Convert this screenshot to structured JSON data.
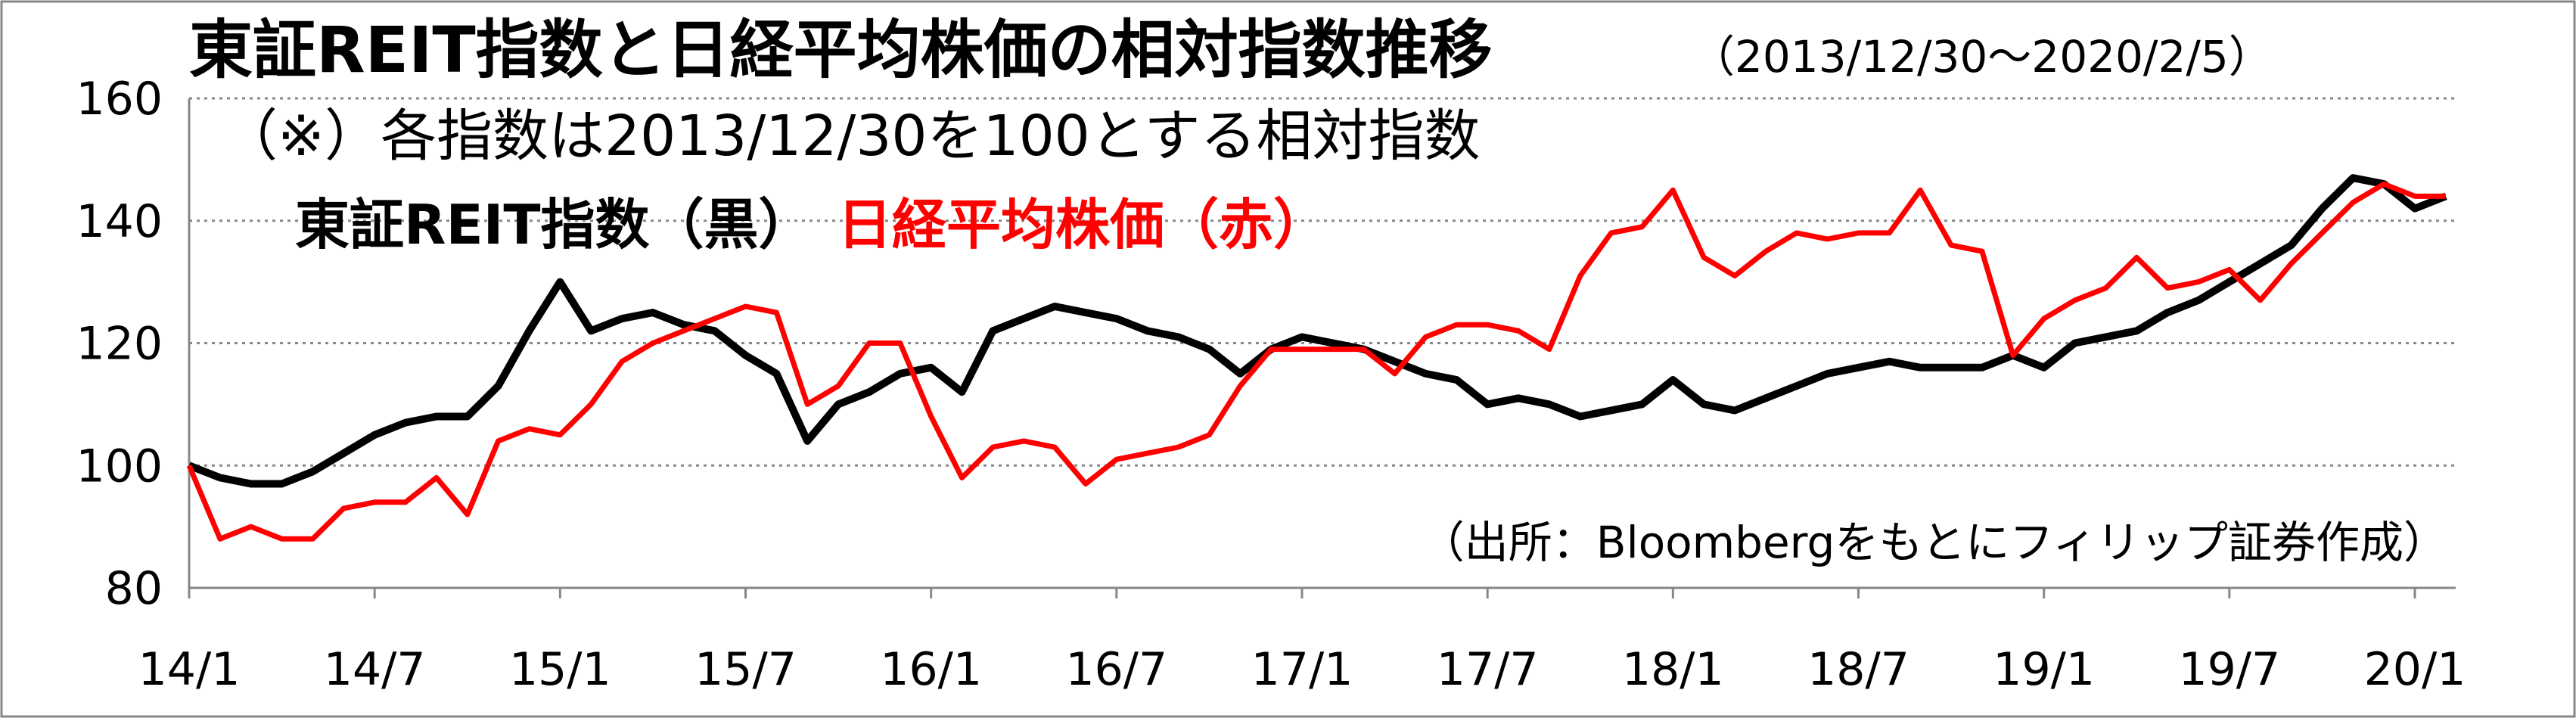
{
  "chart_data": {
    "type": "line",
    "title": "東証REIT指数と日経平均株価の相対指数推移",
    "subtitle": "（2013/12/30～2020/2/5）",
    "annotations": [
      "（※）各指数は2013/12/30を100とする相対指数",
      "（出所：Bloombergをもとにフィリップ証券作成）"
    ],
    "x": [
      "14/1",
      "14/2",
      "14/3",
      "14/4",
      "14/5",
      "14/6",
      "14/7",
      "14/8",
      "14/9",
      "14/10",
      "14/11",
      "14/12",
      "15/1",
      "15/2",
      "15/3",
      "15/4",
      "15/5",
      "15/6",
      "15/7",
      "15/8",
      "15/9",
      "15/10",
      "15/11",
      "15/12",
      "16/1",
      "16/2",
      "16/3",
      "16/4",
      "16/5",
      "16/6",
      "16/7",
      "16/8",
      "16/9",
      "16/10",
      "16/11",
      "16/12",
      "17/1",
      "17/2",
      "17/3",
      "17/4",
      "17/5",
      "17/6",
      "17/7",
      "17/8",
      "17/9",
      "17/10",
      "17/11",
      "17/12",
      "18/1",
      "18/2",
      "18/3",
      "18/4",
      "18/5",
      "18/6",
      "18/7",
      "18/8",
      "18/9",
      "18/10",
      "18/11",
      "18/12",
      "19/1",
      "19/2",
      "19/3",
      "19/4",
      "19/5",
      "19/6",
      "19/7",
      "19/8",
      "19/9",
      "19/10",
      "19/11",
      "19/12",
      "20/1",
      "20/2"
    ],
    "series": [
      {
        "name": "東証REIT指数（黒）",
        "color": "#000000",
        "values": [
          100,
          98,
          97,
          97,
          99,
          102,
          105,
          107,
          108,
          108,
          113,
          122,
          130,
          122,
          124,
          125,
          123,
          122,
          118,
          115,
          104,
          110,
          112,
          115,
          116,
          112,
          122,
          124,
          126,
          125,
          124,
          122,
          121,
          119,
          115,
          119,
          121,
          120,
          119,
          117,
          115,
          114,
          110,
          111,
          110,
          108,
          109,
          110,
          114,
          110,
          109,
          111,
          113,
          115,
          116,
          117,
          116,
          116,
          116,
          118,
          116,
          120,
          121,
          122,
          125,
          127,
          130,
          133,
          136,
          142,
          147,
          146,
          142,
          144
        ]
      },
      {
        "name": "日経平均株価（赤）",
        "color": "#ff0000",
        "values": [
          100,
          88,
          90,
          88,
          88,
          93,
          94,
          94,
          98,
          92,
          104,
          106,
          105,
          110,
          117,
          120,
          122,
          124,
          126,
          125,
          110,
          113,
          120,
          120,
          108,
          98,
          103,
          104,
          103,
          97,
          101,
          102,
          103,
          105,
          113,
          119,
          119,
          119,
          119,
          115,
          121,
          123,
          123,
          122,
          119,
          131,
          138,
          139,
          145,
          134,
          131,
          135,
          138,
          137,
          138,
          138,
          145,
          136,
          135,
          118,
          124,
          127,
          129,
          134,
          129,
          130,
          132,
          127,
          133,
          138,
          143,
          146,
          144,
          144
        ]
      }
    ],
    "ylim": [
      80,
      160
    ],
    "yticks": [
      80,
      100,
      120,
      140,
      160
    ],
    "grid": true
  }
}
